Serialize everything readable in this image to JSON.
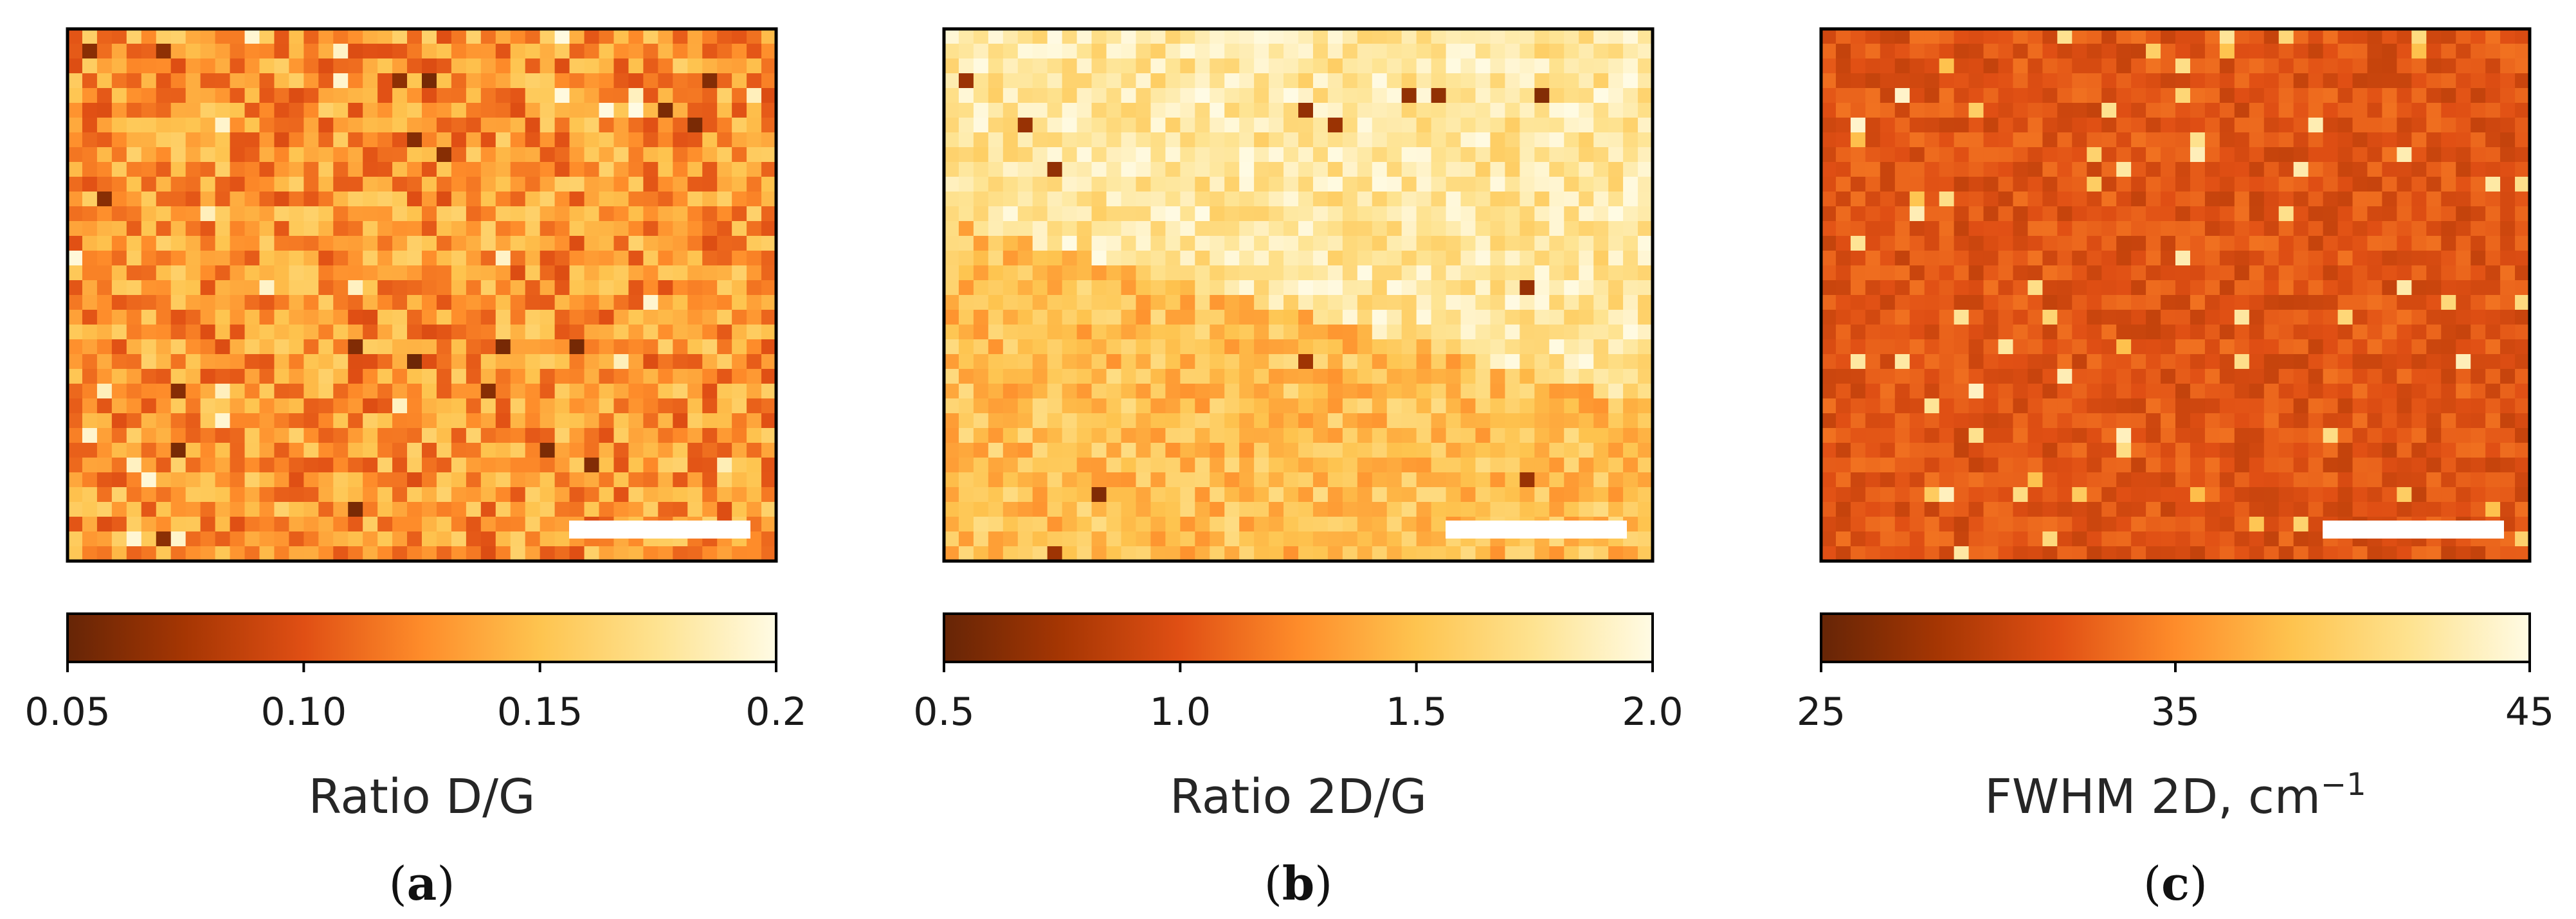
{
  "colormap": {
    "name": "YlOrBr_r",
    "stops": [
      "#662506",
      "#a63603",
      "#e04f14",
      "#fe8c2a",
      "#fec44f",
      "#fee391",
      "#fffbe4"
    ]
  },
  "panels": [
    {
      "id": "a",
      "label_open": "(",
      "label_letter": "a",
      "label_close": ")",
      "has_scale_bar": true,
      "colorbar": {
        "label": "Ratio D/G",
        "label_superscript": "",
        "range": [
          0.05,
          0.2
        ],
        "ticks": [
          {
            "value": 0.05,
            "text": "0.05"
          },
          {
            "value": 0.1,
            "text": "0.10"
          },
          {
            "value": 0.15,
            "text": "0.15"
          },
          {
            "value": 0.2,
            "text": "0.2"
          }
        ]
      }
    },
    {
      "id": "b",
      "label_open": "(",
      "label_letter": "b",
      "label_close": ")",
      "has_scale_bar": true,
      "colorbar": {
        "label": "Ratio 2D/G",
        "label_superscript": "",
        "range": [
          0.5,
          2.0
        ],
        "ticks": [
          {
            "value": 0.5,
            "text": "0.5"
          },
          {
            "value": 1.0,
            "text": "1.0"
          },
          {
            "value": 1.5,
            "text": "1.5"
          },
          {
            "value": 2.0,
            "text": "2.0"
          }
        ]
      }
    },
    {
      "id": "c",
      "label_open": "(",
      "label_letter": "c",
      "label_close": ")",
      "has_scale_bar": true,
      "colorbar": {
        "label": "FWHM 2D, cm",
        "label_superscript": "−1",
        "range": [
          25,
          45
        ],
        "ticks": [
          {
            "value": 25,
            "text": "25"
          },
          {
            "value": 35,
            "text": "35"
          },
          {
            "value": 45,
            "text": "45"
          }
        ]
      }
    }
  ],
  "chart_data": [
    {
      "type": "heatmap",
      "title": "",
      "colorbar_label": "Ratio D/G",
      "colorbar_range": [
        0.05,
        0.2
      ],
      "colorbar_ticks": [
        0.05,
        0.1,
        0.15,
        0.2
      ],
      "description_of_values": "noisy map, values mostly between 0.10 and 0.16, mean ~0.13, a few dark spots ~0.05",
      "grid_size": [
        48,
        36
      ],
      "mean_value": 0.13,
      "scale_bar": true
    },
    {
      "type": "heatmap",
      "title": "",
      "colorbar_label": "Ratio 2D/G",
      "colorbar_range": [
        0.5,
        2.0
      ],
      "colorbar_ticks": [
        0.5,
        1.0,
        1.5,
        2.0
      ],
      "description_of_values": "upper region ~1.7-1.9, lower region ~1.4-1.6, a few dark spots ~0.6",
      "grid_size": [
        48,
        36
      ],
      "mean_value_top": 1.8,
      "mean_value_bottom": 1.5,
      "scale_bar": true
    },
    {
      "type": "heatmap",
      "title": "",
      "colorbar_label": "FWHM 2D, cm−1",
      "colorbar_range": [
        25,
        45
      ],
      "colorbar_ticks": [
        25,
        35,
        45
      ],
      "description_of_values": "mostly ~31-33, with scattered bright spots up to ~42",
      "grid_size": [
        48,
        36
      ],
      "mean_value": 32,
      "scale_bar": true
    }
  ]
}
